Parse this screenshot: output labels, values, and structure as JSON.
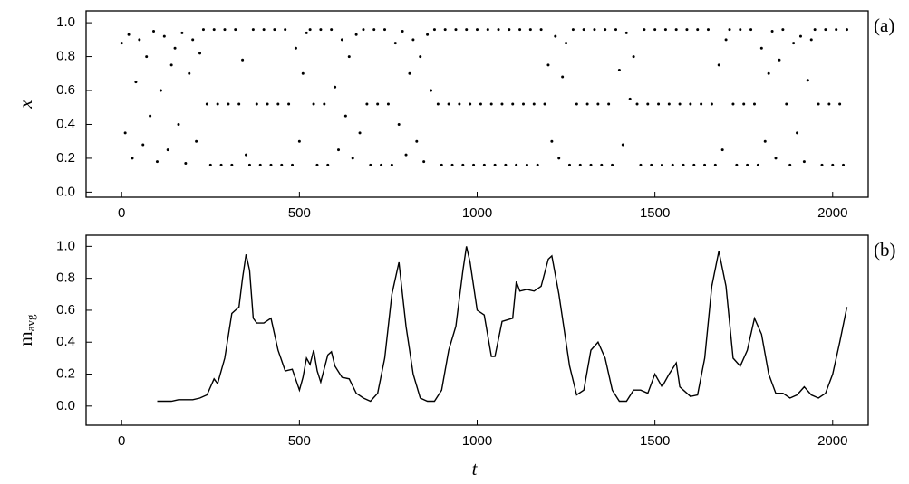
{
  "chart_data": [
    {
      "type": "scatter",
      "panel_label": "(a)",
      "ylabel": "x",
      "color": "#000000",
      "xlim": [
        -100,
        2100
      ],
      "ylim": [
        -0.03,
        1.07
      ],
      "xticks": [
        0,
        500,
        1000,
        1500,
        2000
      ],
      "yticks": [
        {
          "value": 0,
          "label": "0.0"
        },
        0.2,
        0.4,
        0.6,
        0.8,
        {
          "value": 1,
          "label": "1.0"
        }
      ],
      "x": [
        0,
        10,
        20,
        30,
        40,
        50,
        60,
        70,
        80,
        90,
        100,
        110,
        120,
        130,
        140,
        150,
        160,
        170,
        180,
        190,
        200,
        210,
        220,
        230,
        240,
        250,
        260,
        270,
        280,
        290,
        300,
        310,
        320,
        330,
        340,
        350,
        360,
        370,
        380,
        390,
        400,
        410,
        420,
        430,
        440,
        450,
        460,
        470,
        480,
        490,
        500,
        510,
        520,
        530,
        540,
        550,
        560,
        570,
        580,
        590,
        600,
        610,
        620,
        630,
        640,
        650,
        660,
        670,
        680,
        690,
        700,
        710,
        720,
        730,
        740,
        750,
        760,
        770,
        780,
        790,
        800,
        810,
        820,
        830,
        840,
        850,
        860,
        870,
        880,
        890,
        900,
        910,
        920,
        930,
        940,
        950,
        960,
        970,
        980,
        990,
        1000,
        1010,
        1020,
        1030,
        1040,
        1050,
        1060,
        1070,
        1080,
        1090,
        1100,
        1110,
        1120,
        1130,
        1140,
        1150,
        1160,
        1170,
        1180,
        1190,
        1200,
        1210,
        1220,
        1230,
        1240,
        1250,
        1260,
        1270,
        1280,
        1290,
        1300,
        1310,
        1320,
        1330,
        1340,
        1350,
        1360,
        1370,
        1380,
        1390,
        1400,
        1410,
        1420,
        1430,
        1440,
        1450,
        1460,
        1470,
        1480,
        1490,
        1500,
        1510,
        1520,
        1530,
        1540,
        1550,
        1560,
        1570,
        1580,
        1590,
        1600,
        1610,
        1620,
        1630,
        1640,
        1650,
        1660,
        1670,
        1680,
        1690,
        1700,
        1710,
        1720,
        1730,
        1740,
        1750,
        1760,
        1770,
        1780,
        1790,
        1800,
        1810,
        1820,
        1830,
        1840,
        1850,
        1860,
        1870,
        1880,
        1890,
        1900,
        1910,
        1920,
        1930,
        1940,
        1950,
        1960,
        1970,
        1980,
        1990,
        2000,
        2010,
        2020,
        2030,
        2040
      ],
      "values": [
        0.88,
        0.35,
        0.93,
        0.2,
        0.65,
        0.9,
        0.28,
        0.8,
        0.45,
        0.95,
        0.18,
        0.6,
        0.92,
        0.25,
        0.75,
        0.85,
        0.4,
        0.94,
        0.17,
        0.7,
        0.9,
        0.3,
        0.82,
        0.96,
        0.52,
        0.16,
        0.96,
        0.52,
        0.16,
        0.96,
        0.52,
        0.16,
        0.96,
        0.52,
        0.78,
        0.22,
        0.16,
        0.96,
        0.52,
        0.16,
        0.96,
        0.52,
        0.16,
        0.96,
        0.52,
        0.16,
        0.96,
        0.52,
        0.16,
        0.85,
        0.3,
        0.7,
        0.94,
        0.96,
        0.52,
        0.16,
        0.96,
        0.52,
        0.16,
        0.96,
        0.62,
        0.25,
        0.9,
        0.45,
        0.8,
        0.2,
        0.93,
        0.35,
        0.96,
        0.52,
        0.16,
        0.96,
        0.52,
        0.16,
        0.96,
        0.52,
        0.16,
        0.88,
        0.4,
        0.95,
        0.22,
        0.7,
        0.9,
        0.3,
        0.8,
        0.18,
        0.93,
        0.6,
        0.96,
        0.52,
        0.16,
        0.96,
        0.52,
        0.16,
        0.96,
        0.52,
        0.16,
        0.96,
        0.52,
        0.16,
        0.96,
        0.52,
        0.16,
        0.96,
        0.52,
        0.16,
        0.96,
        0.52,
        0.16,
        0.96,
        0.52,
        0.16,
        0.96,
        0.52,
        0.16,
        0.96,
        0.52,
        0.16,
        0.96,
        0.52,
        0.75,
        0.3,
        0.92,
        0.2,
        0.68,
        0.88,
        0.16,
        0.96,
        0.52,
        0.16,
        0.96,
        0.52,
        0.16,
        0.96,
        0.52,
        0.16,
        0.96,
        0.52,
        0.16,
        0.96,
        0.72,
        0.28,
        0.94,
        0.55,
        0.8,
        0.52,
        0.16,
        0.96,
        0.52,
        0.16,
        0.96,
        0.52,
        0.16,
        0.96,
        0.52,
        0.16,
        0.96,
        0.52,
        0.16,
        0.96,
        0.52,
        0.16,
        0.96,
        0.52,
        0.16,
        0.96,
        0.52,
        0.16,
        0.75,
        0.25,
        0.9,
        0.96,
        0.52,
        0.16,
        0.96,
        0.52,
        0.16,
        0.96,
        0.52,
        0.16,
        0.85,
        0.3,
        0.7,
        0.95,
        0.2,
        0.78,
        0.96,
        0.52,
        0.16,
        0.88,
        0.35,
        0.92,
        0.18,
        0.66,
        0.9,
        0.96,
        0.52,
        0.16,
        0.96,
        0.52,
        0.16,
        0.96,
        0.52,
        0.16,
        0.96
      ]
    },
    {
      "type": "line",
      "panel_label": "(b)",
      "ylabel": "m",
      "ylabel_subscript": "avg",
      "xlabel": "t",
      "color": "#000000",
      "xlim": [
        -100,
        2100
      ],
      "ylim": [
        -0.12,
        1.07
      ],
      "xticks": [
        0,
        500,
        1000,
        1500,
        2000
      ],
      "yticks": [
        {
          "value": 0,
          "label": "0.0"
        },
        0.2,
        0.4,
        0.6,
        0.8,
        {
          "value": 1,
          "label": "1.0"
        }
      ],
      "x": [
        100,
        120,
        140,
        160,
        180,
        200,
        220,
        240,
        260,
        270,
        290,
        310,
        320,
        330,
        340,
        350,
        360,
        370,
        380,
        400,
        420,
        440,
        460,
        480,
        500,
        510,
        520,
        530,
        540,
        550,
        560,
        580,
        590,
        600,
        620,
        640,
        660,
        680,
        700,
        720,
        740,
        760,
        780,
        800,
        820,
        840,
        860,
        880,
        900,
        920,
        940,
        960,
        970,
        980,
        1000,
        1020,
        1040,
        1050,
        1070,
        1100,
        1110,
        1120,
        1140,
        1160,
        1180,
        1200,
        1210,
        1230,
        1260,
        1280,
        1300,
        1320,
        1340,
        1360,
        1380,
        1400,
        1420,
        1440,
        1460,
        1480,
        1500,
        1520,
        1540,
        1560,
        1570,
        1600,
        1620,
        1640,
        1660,
        1680,
        1700,
        1720,
        1740,
        1760,
        1780,
        1800,
        1820,
        1840,
        1860,
        1880,
        1900,
        1920,
        1940,
        1960,
        1980,
        2000,
        2020,
        2040
      ],
      "values": [
        0.03,
        0.03,
        0.03,
        0.04,
        0.04,
        0.04,
        0.05,
        0.07,
        0.17,
        0.14,
        0.3,
        0.58,
        0.6,
        0.62,
        0.8,
        0.95,
        0.85,
        0.55,
        0.52,
        0.52,
        0.55,
        0.35,
        0.22,
        0.23,
        0.1,
        0.18,
        0.3,
        0.26,
        0.35,
        0.22,
        0.15,
        0.32,
        0.34,
        0.25,
        0.18,
        0.17,
        0.08,
        0.05,
        0.03,
        0.08,
        0.3,
        0.7,
        0.9,
        0.5,
        0.2,
        0.05,
        0.03,
        0.03,
        0.1,
        0.35,
        0.5,
        0.85,
        1.0,
        0.9,
        0.6,
        0.57,
        0.31,
        0.31,
        0.53,
        0.55,
        0.78,
        0.72,
        0.73,
        0.72,
        0.75,
        0.92,
        0.94,
        0.7,
        0.25,
        0.07,
        0.1,
        0.35,
        0.4,
        0.3,
        0.1,
        0.03,
        0.03,
        0.1,
        0.1,
        0.08,
        0.2,
        0.12,
        0.2,
        0.27,
        0.12,
        0.06,
        0.07,
        0.3,
        0.75,
        0.97,
        0.75,
        0.3,
        0.25,
        0.35,
        0.55,
        0.45,
        0.2,
        0.08,
        0.08,
        0.05,
        0.07,
        0.12,
        0.07,
        0.05,
        0.08,
        0.2,
        0.4,
        0.62
      ]
    }
  ]
}
